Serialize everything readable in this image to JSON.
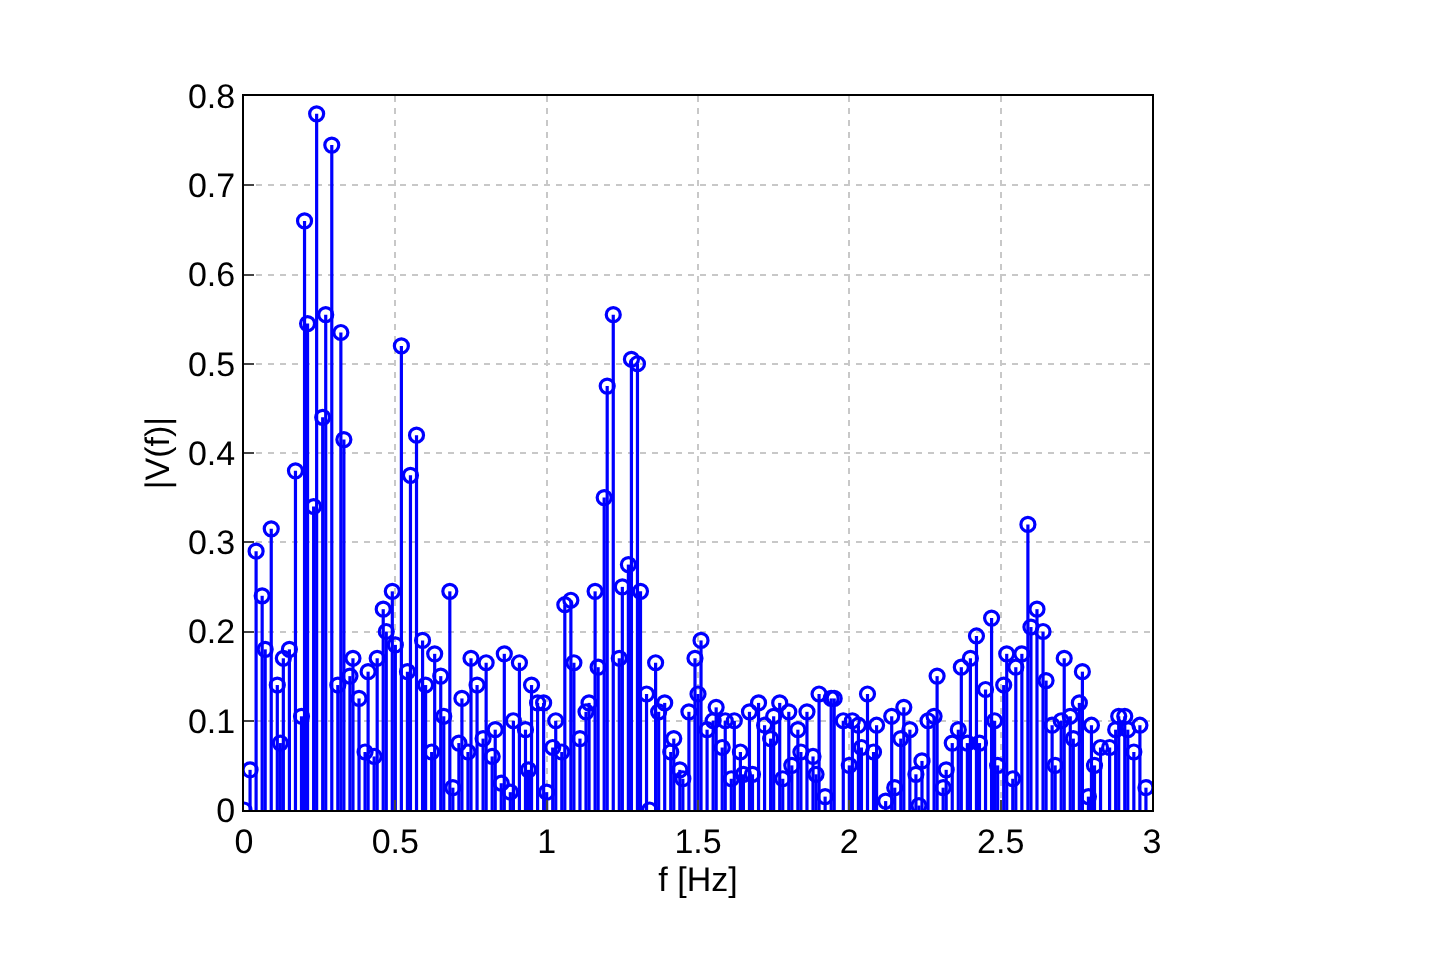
{
  "chart_data": {
    "type": "lollipop",
    "xlabel": "f [Hz]",
    "ylabel": "|V(f)|",
    "xlim": [
      0,
      3
    ],
    "xticks": [
      0,
      0.5,
      1,
      1.5,
      2,
      2.5,
      3
    ],
    "ylim": [
      0,
      0.8
    ],
    "yticks": [
      0,
      0.1,
      0.2,
      0.3,
      0.4,
      0.5,
      0.6,
      0.7,
      0.8
    ],
    "grid": true,
    "marker": "circle",
    "series": [
      {
        "color": "#0000ff",
        "x": [
          0.0,
          0.02,
          0.04,
          0.06,
          0.07,
          0.09,
          0.11,
          0.12,
          0.13,
          0.15,
          0.17,
          0.19,
          0.2,
          0.21,
          0.23,
          0.24,
          0.26,
          0.27,
          0.29,
          0.31,
          0.32,
          0.33,
          0.35,
          0.36,
          0.38,
          0.4,
          0.41,
          0.43,
          0.44,
          0.46,
          0.47,
          0.49,
          0.5,
          0.52,
          0.54,
          0.55,
          0.57,
          0.59,
          0.6,
          0.62,
          0.63,
          0.65,
          0.66,
          0.68,
          0.69,
          0.71,
          0.72,
          0.74,
          0.75,
          0.77,
          0.79,
          0.8,
          0.82,
          0.83,
          0.85,
          0.86,
          0.88,
          0.89,
          0.91,
          0.93,
          0.94,
          0.95,
          0.97,
          0.99,
          1.0,
          1.02,
          1.03,
          1.05,
          1.06,
          1.08,
          1.09,
          1.11,
          1.13,
          1.14,
          1.16,
          1.17,
          1.19,
          1.2,
          1.22,
          1.24,
          1.25,
          1.27,
          1.28,
          1.3,
          1.31,
          1.33,
          1.34,
          1.36,
          1.37,
          1.39,
          1.41,
          1.42,
          1.44,
          1.45,
          1.47,
          1.49,
          1.5,
          1.51,
          1.53,
          1.55,
          1.56,
          1.58,
          1.59,
          1.61,
          1.62,
          1.64,
          1.65,
          1.67,
          1.68,
          1.7,
          1.72,
          1.74,
          1.75,
          1.77,
          1.78,
          1.8,
          1.81,
          1.83,
          1.84,
          1.86,
          1.88,
          1.89,
          1.9,
          1.92,
          1.94,
          1.95,
          1.98,
          2.0,
          2.01,
          2.03,
          2.04,
          2.06,
          2.08,
          2.09,
          2.12,
          2.14,
          2.15,
          2.17,
          2.18,
          2.2,
          2.22,
          2.23,
          2.24,
          2.26,
          2.28,
          2.29,
          2.31,
          2.32,
          2.34,
          2.36,
          2.37,
          2.39,
          2.4,
          2.42,
          2.43,
          2.45,
          2.47,
          2.48,
          2.49,
          2.51,
          2.52,
          2.54,
          2.55,
          2.57,
          2.59,
          2.6,
          2.62,
          2.64,
          2.65,
          2.67,
          2.68,
          2.7,
          2.71,
          2.73,
          2.74,
          2.76,
          2.77,
          2.79,
          2.8,
          2.81,
          2.83,
          2.86,
          2.88,
          2.89,
          2.91,
          2.92,
          2.94,
          2.96,
          2.98
        ],
        "values": [
          0.0,
          0.045,
          0.29,
          0.24,
          0.18,
          0.315,
          0.14,
          0.075,
          0.17,
          0.18,
          0.38,
          0.105,
          0.66,
          0.545,
          0.34,
          0.78,
          0.44,
          0.555,
          0.745,
          0.14,
          0.535,
          0.415,
          0.15,
          0.17,
          0.125,
          0.065,
          0.155,
          0.06,
          0.17,
          0.225,
          0.2,
          0.245,
          0.185,
          0.52,
          0.155,
          0.375,
          0.42,
          0.19,
          0.14,
          0.065,
          0.175,
          0.15,
          0.105,
          0.245,
          0.025,
          0.075,
          0.125,
          0.065,
          0.17,
          0.14,
          0.08,
          0.165,
          0.06,
          0.09,
          0.03,
          0.175,
          0.02,
          0.1,
          0.165,
          0.09,
          0.045,
          0.14,
          0.12,
          0.12,
          0.02,
          0.07,
          0.1,
          0.065,
          0.23,
          0.235,
          0.165,
          0.08,
          0.11,
          0.12,
          0.245,
          0.16,
          0.35,
          0.475,
          0.555,
          0.17,
          0.25,
          0.275,
          0.505,
          0.5,
          0.245,
          0.13,
          0.0,
          0.165,
          0.11,
          0.12,
          0.065,
          0.08,
          0.045,
          0.035,
          0.11,
          0.17,
          0.13,
          0.19,
          0.09,
          0.1,
          0.115,
          0.07,
          0.1,
          0.035,
          0.1,
          0.065,
          0.04,
          0.11,
          0.04,
          0.12,
          0.095,
          0.08,
          0.105,
          0.12,
          0.035,
          0.11,
          0.05,
          0.09,
          0.065,
          0.11,
          0.06,
          0.04,
          0.13,
          0.015,
          0.125,
          0.125,
          0.1,
          0.05,
          0.1,
          0.095,
          0.07,
          0.13,
          0.065,
          0.095,
          0.01,
          0.105,
          0.025,
          0.08,
          0.115,
          0.09,
          0.04,
          0.005,
          0.055,
          0.1,
          0.105,
          0.15,
          0.025,
          0.045,
          0.075,
          0.09,
          0.16,
          0.075,
          0.17,
          0.195,
          0.075,
          0.135,
          0.215,
          0.1,
          0.05,
          0.14,
          0.175,
          0.035,
          0.16,
          0.175,
          0.32,
          0.205,
          0.225,
          0.2,
          0.145,
          0.095,
          0.05,
          0.1,
          0.17,
          0.105,
          0.08,
          0.12,
          0.155,
          0.015,
          0.095,
          0.05,
          0.07,
          0.07,
          0.09,
          0.105,
          0.105,
          0.09,
          0.065,
          0.095,
          0.025
        ]
      }
    ]
  }
}
